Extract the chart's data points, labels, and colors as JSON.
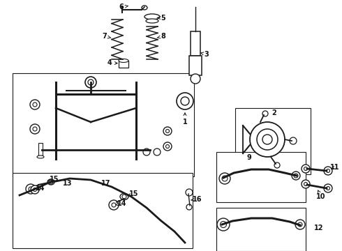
{
  "background_color": "#ffffff",
  "line_color": "#1a1a1a",
  "text_color": "#111111",
  "fig_width": 4.9,
  "fig_height": 3.6,
  "dpi": 100,
  "boxes": {
    "subframe": [
      18,
      105,
      255,
      155
    ],
    "knuckle": [
      335,
      155,
      110,
      100
    ],
    "lca_upper": [
      310,
      218,
      130,
      75
    ],
    "lca_lower": [
      310,
      298,
      130,
      70
    ],
    "stab_bar": [
      18,
      248,
      255,
      105
    ]
  }
}
